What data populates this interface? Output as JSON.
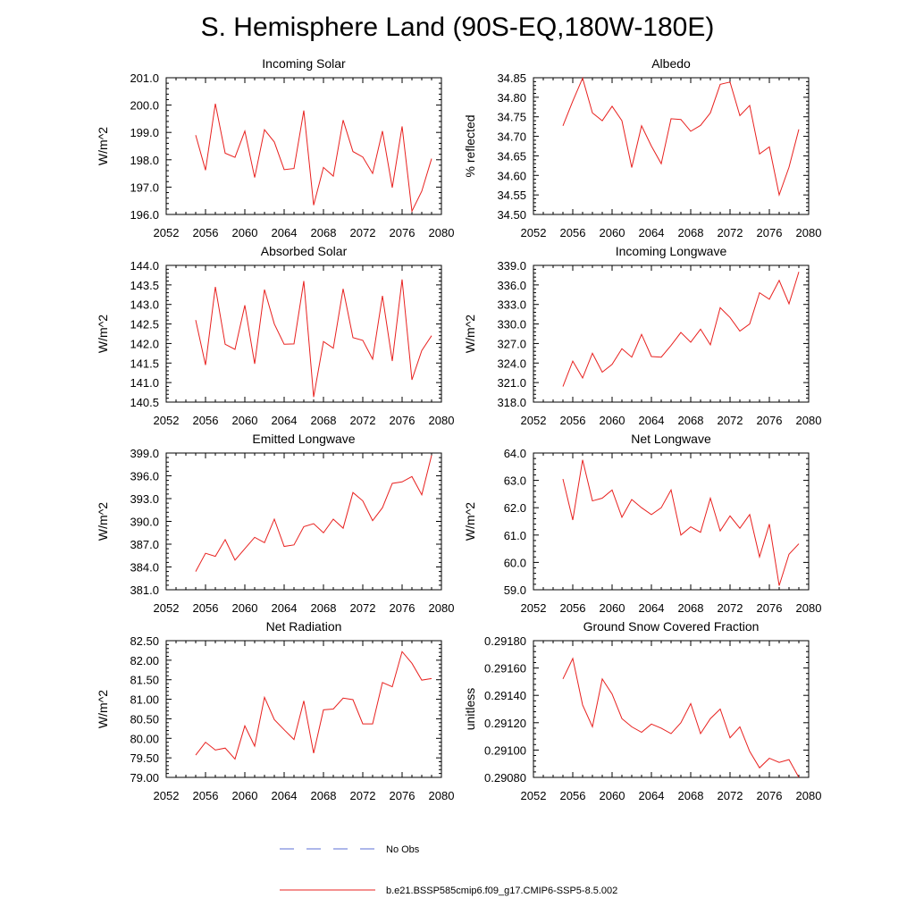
{
  "title": "S. Hemisphere Land (90S-EQ,180W-180E)",
  "legend": {
    "entries": [
      {
        "label": "No Obs",
        "color": "#5b6fd6",
        "dash": "dashed"
      },
      {
        "label": "b.e21.BSSP585cmip6.f09_g17.CMIP6-SSP5-8.5.002",
        "color": "#e8211f",
        "dash": "solid"
      }
    ]
  },
  "chart_data": [
    {
      "type": "line",
      "title": "Incoming Solar",
      "ylabel": "W/m^2",
      "xlim": [
        2052,
        2080
      ],
      "xticks": [
        2052,
        2056,
        2060,
        2064,
        2068,
        2072,
        2076,
        2080
      ],
      "xticklabels": [
        "2052",
        "2056",
        "2060",
        "2064",
        "2068",
        "2072",
        "2076",
        "2080"
      ],
      "ylim": [
        196.0,
        201.0
      ],
      "yticks": [
        196.0,
        197.0,
        198.0,
        199.0,
        200.0,
        201.0
      ],
      "yticklabels": [
        "196.0",
        "197.0",
        "198.0",
        "199.0",
        "200.0",
        "201.0"
      ],
      "series": [
        {
          "name": "b.e21.BSSP585cmip6.f09_g17.CMIP6-SSP5-8.5.002",
          "color": "#e8211f",
          "x": [
            2055,
            2056,
            2057,
            2058,
            2059,
            2060,
            2061,
            2062,
            2063,
            2064,
            2065,
            2066,
            2067,
            2068,
            2069,
            2070,
            2071,
            2072,
            2073,
            2074,
            2075,
            2076,
            2077,
            2078,
            2079
          ],
          "y": [
            198.9,
            197.62,
            200.05,
            198.24,
            198.09,
            199.05,
            197.35,
            199.1,
            198.65,
            197.64,
            197.68,
            199.8,
            196.34,
            197.72,
            197.4,
            199.45,
            198.3,
            198.1,
            197.5,
            199.05,
            196.98,
            199.22,
            196.12,
            196.85,
            198.04
          ]
        }
      ]
    },
    {
      "type": "line",
      "title": "Albedo",
      "ylabel": "% reflected",
      "xlim": [
        2052,
        2080
      ],
      "xticks": [
        2052,
        2056,
        2060,
        2064,
        2068,
        2072,
        2076,
        2080
      ],
      "xticklabels": [
        "2052",
        "2056",
        "2060",
        "2064",
        "2068",
        "2072",
        "2076",
        "2080"
      ],
      "ylim": [
        34.5,
        34.85
      ],
      "yticks": [
        34.5,
        34.55,
        34.6,
        34.65,
        34.7,
        34.75,
        34.8,
        34.85
      ],
      "yticklabels": [
        "34.50",
        "34.55",
        "34.60",
        "34.65",
        "34.70",
        "34.75",
        "34.80",
        "34.85"
      ],
      "series": [
        {
          "name": "b.e21.BSSP585cmip6.f09_g17.CMIP6-SSP5-8.5.002",
          "color": "#e8211f",
          "x": [
            2055,
            2056,
            2057,
            2058,
            2059,
            2060,
            2061,
            2062,
            2063,
            2064,
            2065,
            2066,
            2067,
            2068,
            2069,
            2070,
            2071,
            2072,
            2073,
            2074,
            2075,
            2076,
            2077,
            2078,
            2079
          ],
          "y": [
            34.727,
            34.79,
            34.849,
            34.76,
            34.74,
            34.777,
            34.74,
            34.62,
            34.727,
            34.675,
            34.63,
            34.745,
            34.743,
            34.713,
            34.728,
            34.76,
            34.833,
            34.839,
            34.753,
            34.779,
            34.655,
            34.673,
            34.55,
            34.621,
            34.718
          ]
        }
      ]
    },
    {
      "type": "line",
      "title": "Absorbed Solar",
      "ylabel": "W/m^2",
      "xlim": [
        2052,
        2080
      ],
      "xticks": [
        2052,
        2056,
        2060,
        2064,
        2068,
        2072,
        2076,
        2080
      ],
      "xticklabels": [
        "2052",
        "2056",
        "2060",
        "2064",
        "2068",
        "2072",
        "2076",
        "2080"
      ],
      "ylim": [
        140.5,
        144.0
      ],
      "yticks": [
        140.5,
        141.0,
        141.5,
        142.0,
        142.5,
        143.0,
        143.5,
        144.0
      ],
      "yticklabels": [
        "140.5",
        "141.0",
        "141.5",
        "142.0",
        "142.5",
        "143.0",
        "143.5",
        "144.0"
      ],
      "series": [
        {
          "name": "b.e21.BSSP585cmip6.f09_g17.CMIP6-SSP5-8.5.002",
          "color": "#e8211f",
          "x": [
            2055,
            2056,
            2057,
            2058,
            2059,
            2060,
            2061,
            2062,
            2063,
            2064,
            2065,
            2066,
            2067,
            2068,
            2069,
            2070,
            2071,
            2072,
            2073,
            2074,
            2075,
            2076,
            2077,
            2078,
            2079
          ],
          "y": [
            142.6,
            141.45,
            143.45,
            141.98,
            141.85,
            142.98,
            141.48,
            143.38,
            142.5,
            141.98,
            141.99,
            143.6,
            140.63,
            142.05,
            141.88,
            143.4,
            142.15,
            142.08,
            141.6,
            143.22,
            141.55,
            143.64,
            141.07,
            141.82,
            142.2
          ]
        }
      ]
    },
    {
      "type": "line",
      "title": "Incoming Longwave",
      "ylabel": "W/m^2",
      "xlim": [
        2052,
        2080
      ],
      "xticks": [
        2052,
        2056,
        2060,
        2064,
        2068,
        2072,
        2076,
        2080
      ],
      "xticklabels": [
        "2052",
        "2056",
        "2060",
        "2064",
        "2068",
        "2072",
        "2076",
        "2080"
      ],
      "ylim": [
        318.0,
        339.0
      ],
      "yticks": [
        318.0,
        321.0,
        324.0,
        327.0,
        330.0,
        333.0,
        336.0,
        339.0
      ],
      "yticklabels": [
        "318.0",
        "321.0",
        "324.0",
        "327.0",
        "330.0",
        "333.0",
        "336.0",
        "339.0"
      ],
      "series": [
        {
          "name": "b.e21.BSSP585cmip6.f09_g17.CMIP6-SSP5-8.5.002",
          "color": "#e8211f",
          "x": [
            2055,
            2056,
            2057,
            2058,
            2059,
            2060,
            2061,
            2062,
            2063,
            2064,
            2065,
            2066,
            2067,
            2068,
            2069,
            2070,
            2071,
            2072,
            2073,
            2074,
            2075,
            2076,
            2077,
            2078,
            2079
          ],
          "y": [
            320.4,
            324.3,
            321.7,
            325.5,
            322.6,
            323.8,
            326.2,
            324.9,
            328.4,
            325.0,
            324.9,
            326.7,
            328.7,
            327.2,
            329.2,
            326.8,
            332.5,
            331.0,
            328.9,
            330.0,
            334.8,
            333.8,
            336.7,
            333.1,
            338.0
          ]
        }
      ]
    },
    {
      "type": "line",
      "title": "Emitted Longwave",
      "ylabel": "W/m^2",
      "xlim": [
        2052,
        2080
      ],
      "xticks": [
        2052,
        2056,
        2060,
        2064,
        2068,
        2072,
        2076,
        2080
      ],
      "xticklabels": [
        "2052",
        "2056",
        "2060",
        "2064",
        "2068",
        "2072",
        "2076",
        "2080"
      ],
      "ylim": [
        381.0,
        399.0
      ],
      "yticks": [
        381.0,
        384.0,
        387.0,
        390.0,
        393.0,
        396.0,
        399.0
      ],
      "yticklabels": [
        "381.0",
        "384.0",
        "387.0",
        "390.0",
        "393.0",
        "396.0",
        "399.0"
      ],
      "series": [
        {
          "name": "b.e21.BSSP585cmip6.f09_g17.CMIP6-SSP5-8.5.002",
          "color": "#e8211f",
          "x": [
            2055,
            2056,
            2057,
            2058,
            2059,
            2060,
            2061,
            2062,
            2063,
            2064,
            2065,
            2066,
            2067,
            2068,
            2069,
            2070,
            2071,
            2072,
            2073,
            2074,
            2075,
            2076,
            2077,
            2078,
            2079
          ],
          "y": [
            383.4,
            385.8,
            385.4,
            387.6,
            384.9,
            386.4,
            387.9,
            387.2,
            390.3,
            386.7,
            386.9,
            389.3,
            389.7,
            388.5,
            390.3,
            389.1,
            393.8,
            392.7,
            390.1,
            391.8,
            395.0,
            395.2,
            395.9,
            393.5,
            398.7
          ]
        }
      ]
    },
    {
      "type": "line",
      "title": "Net Longwave",
      "ylabel": "W/m^2",
      "xlim": [
        2052,
        2080
      ],
      "xticks": [
        2052,
        2056,
        2060,
        2064,
        2068,
        2072,
        2076,
        2080
      ],
      "xticklabels": [
        "2052",
        "2056",
        "2060",
        "2064",
        "2068",
        "2072",
        "2076",
        "2080"
      ],
      "ylim": [
        59.0,
        64.0
      ],
      "yticks": [
        59.0,
        60.0,
        61.0,
        62.0,
        63.0,
        64.0
      ],
      "yticklabels": [
        "59.0",
        "60.0",
        "61.0",
        "62.0",
        "63.0",
        "64.0"
      ],
      "series": [
        {
          "name": "b.e21.BSSP585cmip6.f09_g17.CMIP6-SSP5-8.5.002",
          "color": "#e8211f",
          "x": [
            2055,
            2056,
            2057,
            2058,
            2059,
            2060,
            2061,
            2062,
            2063,
            2064,
            2065,
            2066,
            2067,
            2068,
            2069,
            2070,
            2071,
            2072,
            2073,
            2074,
            2075,
            2076,
            2077,
            2078,
            2079
          ],
          "y": [
            63.05,
            61.55,
            63.75,
            62.25,
            62.35,
            62.65,
            61.65,
            62.3,
            62.0,
            61.75,
            62.0,
            62.65,
            61.0,
            61.3,
            61.1,
            62.35,
            61.15,
            61.7,
            61.25,
            61.75,
            60.2,
            61.4,
            59.15,
            60.3,
            60.68
          ]
        }
      ]
    },
    {
      "type": "line",
      "title": "Net Radiation",
      "ylabel": "W/m^2",
      "xlim": [
        2052,
        2080
      ],
      "xticks": [
        2052,
        2056,
        2060,
        2064,
        2068,
        2072,
        2076,
        2080
      ],
      "xticklabels": [
        "2052",
        "2056",
        "2060",
        "2064",
        "2068",
        "2072",
        "2076",
        "2080"
      ],
      "ylim": [
        79.0,
        82.5
      ],
      "yticks": [
        79.0,
        79.5,
        80.0,
        80.5,
        81.0,
        81.5,
        82.0,
        82.5
      ],
      "yticklabels": [
        "79.00",
        "79.50",
        "80.00",
        "80.50",
        "81.00",
        "81.50",
        "82.00",
        "82.50"
      ],
      "series": [
        {
          "name": "b.e21.BSSP585cmip6.f09_g17.CMIP6-SSP5-8.5.002",
          "color": "#e8211f",
          "x": [
            2055,
            2056,
            2057,
            2058,
            2059,
            2060,
            2061,
            2062,
            2063,
            2064,
            2065,
            2066,
            2067,
            2068,
            2069,
            2070,
            2071,
            2072,
            2073,
            2074,
            2075,
            2076,
            2077,
            2078,
            2079
          ],
          "y": [
            79.57,
            79.9,
            79.7,
            79.75,
            79.47,
            80.32,
            79.8,
            81.05,
            80.48,
            80.22,
            79.97,
            80.96,
            79.62,
            80.73,
            80.75,
            81.03,
            80.99,
            80.37,
            80.37,
            81.43,
            81.32,
            82.22,
            81.92,
            81.49,
            81.53
          ]
        }
      ]
    },
    {
      "type": "line",
      "title": "Ground Snow Covered Fraction",
      "ylabel": "unitless",
      "xlim": [
        2052,
        2080
      ],
      "xticks": [
        2052,
        2056,
        2060,
        2064,
        2068,
        2072,
        2076,
        2080
      ],
      "xticklabels": [
        "2052",
        "2056",
        "2060",
        "2064",
        "2068",
        "2072",
        "2076",
        "2080"
      ],
      "ylim": [
        0.2908,
        0.2918
      ],
      "yticks": [
        0.2908,
        0.291,
        0.2912,
        0.2914,
        0.2916,
        0.2918
      ],
      "yticklabels": [
        "0.29080",
        "0.29100",
        "0.29120",
        "0.29140",
        "0.29160",
        "0.29180"
      ],
      "series": [
        {
          "name": "b.e21.BSSP585cmip6.f09_g17.CMIP6-SSP5-8.5.002",
          "color": "#e8211f",
          "x": [
            2055,
            2056,
            2057,
            2058,
            2059,
            2060,
            2061,
            2062,
            2063,
            2064,
            2065,
            2066,
            2067,
            2068,
            2069,
            2070,
            2071,
            2072,
            2073,
            2074,
            2075,
            2076,
            2077,
            2078,
            2079
          ],
          "y": [
            0.29152,
            0.29167,
            0.29133,
            0.29117,
            0.29152,
            0.29141,
            0.29123,
            0.29117,
            0.29113,
            0.29119,
            0.29116,
            0.29112,
            0.2912,
            0.29134,
            0.29112,
            0.29123,
            0.2913,
            0.29109,
            0.29117,
            0.29099,
            0.29087,
            0.29094,
            0.29091,
            0.29093,
            0.2908
          ]
        }
      ]
    }
  ]
}
